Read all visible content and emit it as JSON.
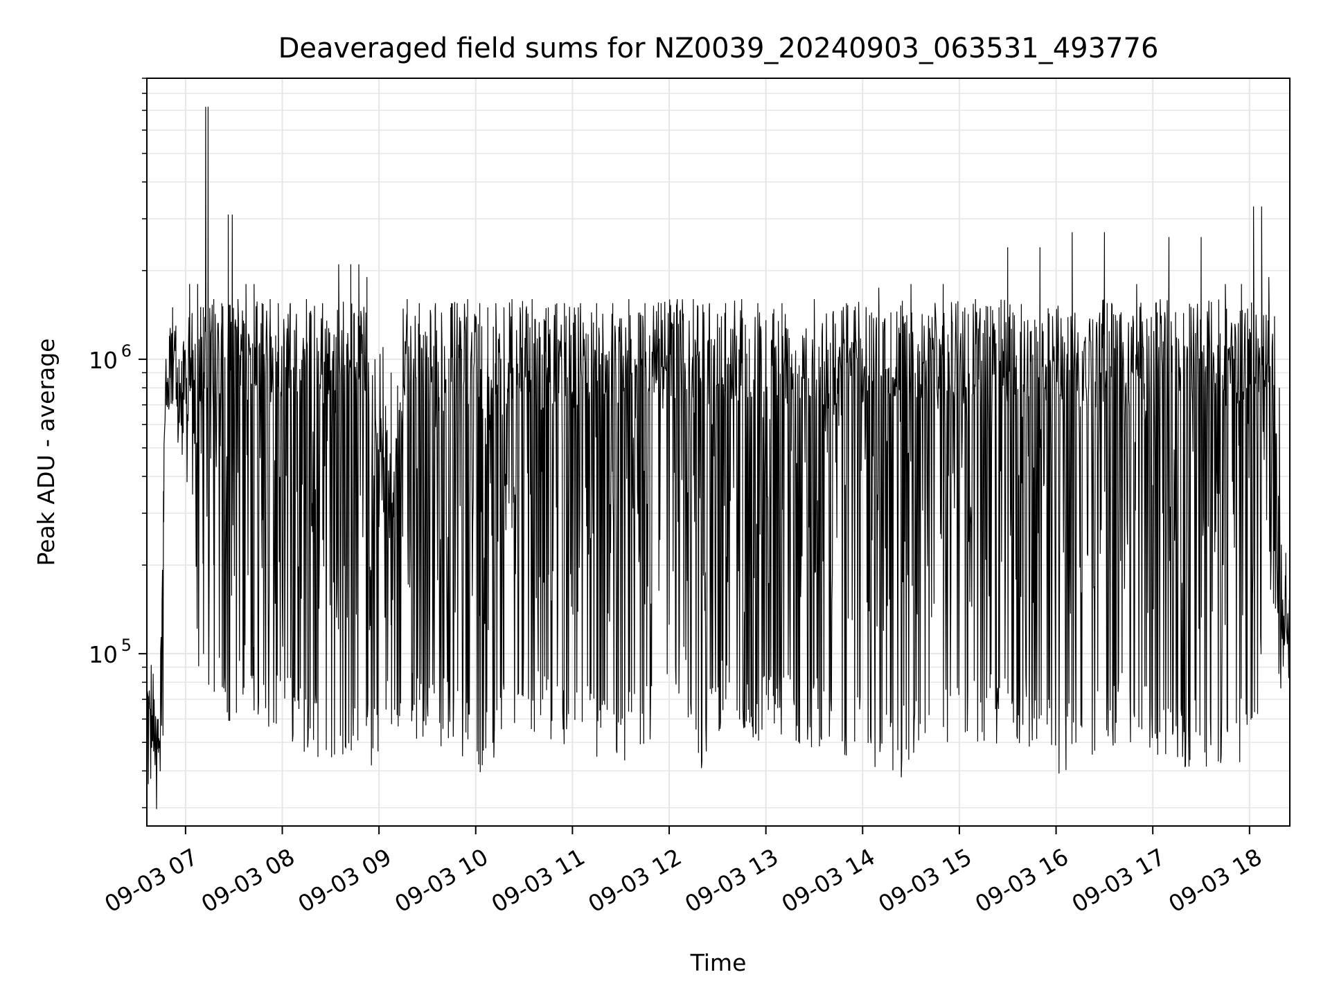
{
  "chart_data": {
    "type": "line",
    "title": "Deaveraged field sums for NZ0039_20240903_063531_493776",
    "xlabel": "Time",
    "ylabel": "Peak ADU - average",
    "yscale": "log",
    "ylim": [
      26000,
      9000000
    ],
    "xlim": [
      "2024-09-03 06:36",
      "2024-09-03 18:25"
    ],
    "x_ticks": [
      {
        "t": "2024-09-03 07:00",
        "label": "09-03 07"
      },
      {
        "t": "2024-09-03 08:00",
        "label": "09-03 08"
      },
      {
        "t": "2024-09-03 09:00",
        "label": "09-03 09"
      },
      {
        "t": "2024-09-03 10:00",
        "label": "09-03 10"
      },
      {
        "t": "2024-09-03 11:00",
        "label": "09-03 11"
      },
      {
        "t": "2024-09-03 12:00",
        "label": "09-03 12"
      },
      {
        "t": "2024-09-03 13:00",
        "label": "09-03 13"
      },
      {
        "t": "2024-09-03 14:00",
        "label": "09-03 14"
      },
      {
        "t": "2024-09-03 15:00",
        "label": "09-03 15"
      },
      {
        "t": "2024-09-03 16:00",
        "label": "09-03 16"
      },
      {
        "t": "2024-09-03 17:00",
        "label": "09-03 17"
      },
      {
        "t": "2024-09-03 18:00",
        "label": "09-03 18"
      }
    ],
    "y_ticks": [
      {
        "value": 100000,
        "label": "10",
        "exp": "5"
      },
      {
        "value": 1000000,
        "label": "10",
        "exp": "6"
      }
    ],
    "grid": true,
    "line_color": "#000000",
    "series": [
      {
        "x": [
          "2024-09-03 06:36",
          "2024-09-03 06:39",
          "2024-09-03 06:42",
          "2024-09-03 06:44",
          "2024-09-03 06:46",
          "2024-09-03 06:47",
          "2024-09-03 06:49",
          "2024-09-03 06:51",
          "2024-09-03 06:53",
          "2024-09-03 06:55",
          "2024-09-03 06:57",
          "2024-09-03 07:00",
          "2024-09-03 07:05",
          "2024-09-03 07:10",
          "2024-09-03 07:12",
          "2024-09-03 07:13",
          "2024-09-03 07:15",
          "2024-09-03 07:20",
          "2024-09-03 07:25",
          "2024-09-03 07:28",
          "2024-09-03 07:30",
          "2024-09-03 07:35",
          "2024-09-03 07:40",
          "2024-09-03 07:45",
          "2024-09-03 07:50",
          "2024-09-03 07:55",
          "2024-09-03 08:00",
          "2024-09-03 08:10",
          "2024-09-03 08:20",
          "2024-09-03 08:30",
          "2024-09-03 08:40",
          "2024-09-03 08:45",
          "2024-09-03 08:50",
          "2024-09-03 08:55",
          "2024-09-03 09:00",
          "2024-09-03 09:05",
          "2024-09-03 09:10",
          "2024-09-03 09:15",
          "2024-09-03 09:20",
          "2024-09-03 09:30",
          "2024-09-03 09:40",
          "2024-09-03 09:50",
          "2024-09-03 10:00",
          "2024-09-03 10:05",
          "2024-09-03 10:10",
          "2024-09-03 10:15",
          "2024-09-03 10:20",
          "2024-09-03 10:25",
          "2024-09-03 10:30",
          "2024-09-03 10:40",
          "2024-09-03 10:50",
          "2024-09-03 11:00",
          "2024-09-03 11:10",
          "2024-09-03 11:20",
          "2024-09-03 11:30",
          "2024-09-03 11:40",
          "2024-09-03 11:50",
          "2024-09-03 12:00",
          "2024-09-03 12:10",
          "2024-09-03 12:20",
          "2024-09-03 12:30",
          "2024-09-03 12:40",
          "2024-09-03 12:50",
          "2024-09-03 13:00",
          "2024-09-03 13:20",
          "2024-09-03 13:40",
          "2024-09-03 14:00",
          "2024-09-03 14:20",
          "2024-09-03 14:40",
          "2024-09-03 15:00",
          "2024-09-03 15:20",
          "2024-09-03 15:40",
          "2024-09-03 16:00",
          "2024-09-03 16:20",
          "2024-09-03 16:40",
          "2024-09-03 17:00",
          "2024-09-03 17:20",
          "2024-09-03 17:40",
          "2024-09-03 17:50",
          "2024-09-03 18:00",
          "2024-09-03 18:05",
          "2024-09-03 18:10",
          "2024-09-03 18:14",
          "2024-09-03 18:17",
          "2024-09-03 18:20",
          "2024-09-03 18:25"
        ],
        "upper": [
          75000,
          70000,
          60000,
          70000,
          280000,
          900000,
          1200000,
          1500000,
          1300000,
          1000000,
          1100000,
          1200000,
          1800000,
          1500000,
          1550000,
          7200000,
          1600000,
          1550000,
          1500000,
          3100000,
          1600000,
          1500000,
          1800000,
          1550000,
          1600000,
          1550000,
          1550000,
          1600000,
          1550000,
          1600000,
          2100000,
          2100000,
          1900000,
          1000000,
          1100000,
          900000,
          600000,
          1600000,
          1550000,
          1550000,
          1550000,
          1600000,
          1550000,
          1500000,
          1550000,
          1500000,
          1600000,
          1500000,
          1600000,
          1500000,
          1550000,
          1550000,
          1550000,
          1550000,
          1600000,
          1550000,
          1550000,
          1600000,
          1600000,
          1550000,
          1550000,
          1600000,
          1550000,
          1550000,
          1600000,
          1550000,
          1650000,
          1750000,
          1800000,
          1650000,
          1700000,
          2400000,
          1700000,
          2700000,
          1700000,
          1800000,
          2600000,
          1650000,
          1800000,
          1600000,
          3300000,
          1900000,
          1400000,
          800000,
          220000,
          160000
        ],
        "lower": [
          70000,
          55000,
          45000,
          33000,
          40000,
          700000,
          550000,
          500000,
          350000,
          330000,
          400000,
          380000,
          150000,
          65000,
          65000,
          60000,
          45000,
          70000,
          50000,
          45000,
          55000,
          70000,
          65000,
          55000,
          60000,
          48000,
          60000,
          45000,
          45000,
          42000,
          38000,
          45000,
          40000,
          38000,
          45000,
          50000,
          45000,
          50000,
          50000,
          50000,
          48000,
          45000,
          38000,
          38000,
          38000,
          45000,
          50000,
          60000,
          60000,
          48000,
          48000,
          45000,
          45000,
          42000,
          40000,
          45000,
          50000,
          80000,
          60000,
          40000,
          55000,
          50000,
          48000,
          50000,
          48000,
          48000,
          42000,
          35000,
          45000,
          45000,
          48000,
          48000,
          38000,
          42000,
          50000,
          45000,
          40000,
          38000,
          40000,
          42000,
          45000,
          180000,
          160000,
          60000,
          70000,
          85000
        ]
      }
    ]
  }
}
